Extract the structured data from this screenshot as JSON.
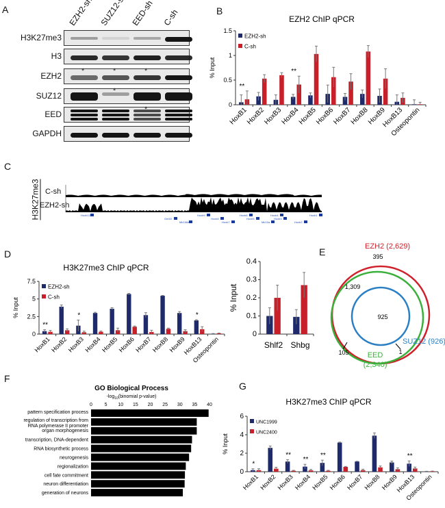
{
  "panels": {
    "a": "A",
    "b": "B",
    "c": "C",
    "d": "D",
    "e": "E",
    "f": "F",
    "g": "G"
  },
  "blot": {
    "columns": [
      "EZH2-sh",
      "SUZ12-sh",
      "EED-sh",
      "C-sh"
    ],
    "rows": [
      "H3K27me3",
      "H3",
      "EZH2",
      "SUZ12",
      "EED",
      "GAPDH"
    ],
    "star": "*"
  },
  "track": {
    "ylabel": "H3K27me3",
    "rows": [
      "C-sh",
      "EZH2-sh"
    ],
    "genes": [
      "Hoxb13",
      "Gm53",
      "Mir196a-1",
      "Hoxb9",
      "Hoxb8",
      "Hoxb7",
      "Hoxb6",
      "Hoxb5",
      "Mir10a",
      "Hoxb4",
      "Hoxb3",
      "Hoxb2",
      "Hoxb1"
    ]
  },
  "venn": {
    "sets": [
      {
        "name": "EZH2 (2,629)",
        "color": "#d0202a"
      },
      {
        "name": "EED",
        "sub": "(2,340)",
        "color": "#3bb03b"
      },
      {
        "name": "SUZ12 (926)",
        "color": "#2a7fc4"
      }
    ],
    "regions": [
      "395",
      "1,309",
      "925",
      "105",
      "1"
    ]
  },
  "chart_data": [
    {
      "id": "B",
      "type": "bar",
      "title": "EZH2 ChIP qPCR",
      "ylabel": "% Input",
      "ylim": [
        0,
        1.5
      ],
      "yticks": [
        "0",
        "0.5",
        "1",
        "1.5"
      ],
      "categories": [
        "HoxB1",
        "HoxB2",
        "HoxB3",
        "HoxB4",
        "HoxB5",
        "HoxB6",
        "HoxB7",
        "HoxB8",
        "HoxB9",
        "HoxB13",
        "Osteopontin"
      ],
      "series": [
        {
          "name": "EZH2-sh",
          "color": "#1f2a6b",
          "values": [
            0.05,
            0.17,
            0.1,
            0.16,
            0.19,
            0.22,
            0.16,
            0.22,
            0.18,
            0.06,
            0.01
          ],
          "err": [
            0.15,
            0.08,
            0.1,
            0.05,
            0.05,
            0.18,
            0.07,
            0.08,
            0.14,
            0.14,
            0.09
          ]
        },
        {
          "name": "C-sh",
          "color": "#c8202a",
          "values": [
            0.11,
            0.53,
            0.6,
            0.41,
            1.03,
            0.56,
            0.47,
            1.08,
            0.53,
            0.14,
            0.01
          ],
          "err": [
            0.17,
            0.08,
            0.05,
            0.17,
            0.16,
            0.2,
            0.16,
            0.12,
            0.2,
            0.1,
            0.04
          ]
        }
      ],
      "annotations": [
        "**",
        "",
        "",
        "**",
        "",
        "",
        "",
        "",
        "",
        "",
        ""
      ],
      "legend": "top-left"
    },
    {
      "id": "D1",
      "type": "bar",
      "title": "H3K27me3 ChIP qPCR",
      "ylabel": "% Input",
      "ylim": [
        0,
        7.5
      ],
      "yticks": [
        "0",
        "2.5",
        "5",
        "7.5"
      ],
      "categories": [
        "HoxB1",
        "HoxB2",
        "HoxB3",
        "HoxB4",
        "HoxB5",
        "HoxB6",
        "HoxB7",
        "HoxB8",
        "HoxB9",
        "HoxB13",
        "Osteopontin"
      ],
      "series": [
        {
          "name": "EZH2-sh",
          "color": "#1f2a6b",
          "values": [
            0.42,
            3.9,
            1.2,
            3.0,
            3.6,
            5.7,
            2.7,
            5.45,
            3.0,
            1.95,
            0.05
          ],
          "err": [
            0.2,
            0.25,
            0.8,
            0.1,
            0.15,
            0.1,
            0.35,
            0.05,
            0.2,
            0.1,
            0.03
          ]
        },
        {
          "name": "C-sh",
          "color": "#c8202a",
          "values": [
            0.33,
            0.55,
            0.26,
            0.33,
            0.55,
            1.05,
            0.3,
            0.75,
            0.42,
            0.7,
            0.1
          ],
          "err": [
            0.2,
            0.2,
            0.15,
            0.1,
            0.3,
            0.1,
            0.25,
            0.1,
            0.2,
            0.35,
            0.05
          ]
        }
      ],
      "annotations": [
        "**",
        "",
        "*",
        "",
        "",
        "",
        "",
        "",
        "",
        "*",
        ""
      ],
      "legend": "top-left"
    },
    {
      "id": "D2",
      "type": "bar",
      "title": "",
      "ylabel": "% Input",
      "ylim": [
        0,
        0.4
      ],
      "yticks": [
        "0",
        "0.1",
        "0.2",
        "0.3",
        "0.4"
      ],
      "categories": [
        "Shlf2",
        "Shbg"
      ],
      "series": [
        {
          "name": "EZH2-sh",
          "color": "#1f2a6b",
          "values": [
            0.1,
            0.095
          ],
          "err": [
            0.045,
            0.04
          ]
        },
        {
          "name": "C-sh",
          "color": "#c8202a",
          "values": [
            0.2,
            0.27
          ],
          "err": [
            0.07,
            0.07
          ]
        }
      ],
      "annotations": [
        "",
        ""
      ],
      "legend": "none"
    },
    {
      "id": "F",
      "type": "bar",
      "orientation": "horizontal",
      "title": "GO Biological Process",
      "xlabel": "-log10 (binomial p-value)",
      "xlabel_main": "-log",
      "xlabel_sub": "10",
      "xlabel_rest": "(binomial p-value)",
      "xlim": [
        0,
        40
      ],
      "xticks": [
        "0",
        "5",
        "10",
        "15",
        "20",
        "25",
        "30",
        "35",
        "40"
      ],
      "categories": [
        "pattern specification process",
        "regulation of transcription from RNA polymerase II promoter",
        "organ morphogenesis",
        "transcription, DNA-dependent",
        "RNA biosynthetic process",
        "neurogenesis",
        "regionalization",
        "cell fate commitment",
        "neuron differentiation",
        "generation of neurons"
      ],
      "values": [
        39.7,
        35.7,
        35.7,
        34.1,
        33.8,
        33.1,
        32.0,
        31.7,
        31.6,
        31.0
      ],
      "color": "#000000"
    },
    {
      "id": "G",
      "type": "bar",
      "title": "H3K27me3 ChIP qPCR",
      "ylabel": "% Input",
      "ylim": [
        0,
        6
      ],
      "yticks": [
        "0",
        "2",
        "4",
        "6"
      ],
      "categories": [
        "HoxB1",
        "HoxB2",
        "HoxB3",
        "HoxB4",
        "HoxB5",
        "HoxB6",
        "HoxB7",
        "HoxB8",
        "HoxB9",
        "HoxB13",
        "Osteopontin"
      ],
      "series": [
        {
          "name": "UNC1999",
          "color": "#1f2a6b",
          "values": [
            0.17,
            2.58,
            1.1,
            0.55,
            0.95,
            3.15,
            1.1,
            3.9,
            1.0,
            0.87,
            0.03
          ],
          "err": [
            0.15,
            0.2,
            0.2,
            0.25,
            0.3,
            0.05,
            0.03,
            0.3,
            0.15,
            0.3,
            0.02
          ]
        },
        {
          "name": "UNC2400",
          "color": "#c8202a",
          "values": [
            0.17,
            0.33,
            0.1,
            0.15,
            0.1,
            0.52,
            0.17,
            0.47,
            0.27,
            0.35,
            0.05
          ],
          "err": [
            0.15,
            0.15,
            0.05,
            0.1,
            0.05,
            0.05,
            0.1,
            0.15,
            0.15,
            0.15,
            0.02
          ]
        }
      ],
      "annotations": [
        "*",
        "",
        "**",
        "**",
        "**",
        "",
        "",
        "",
        "",
        "**",
        ""
      ],
      "legend": "top-left"
    }
  ]
}
